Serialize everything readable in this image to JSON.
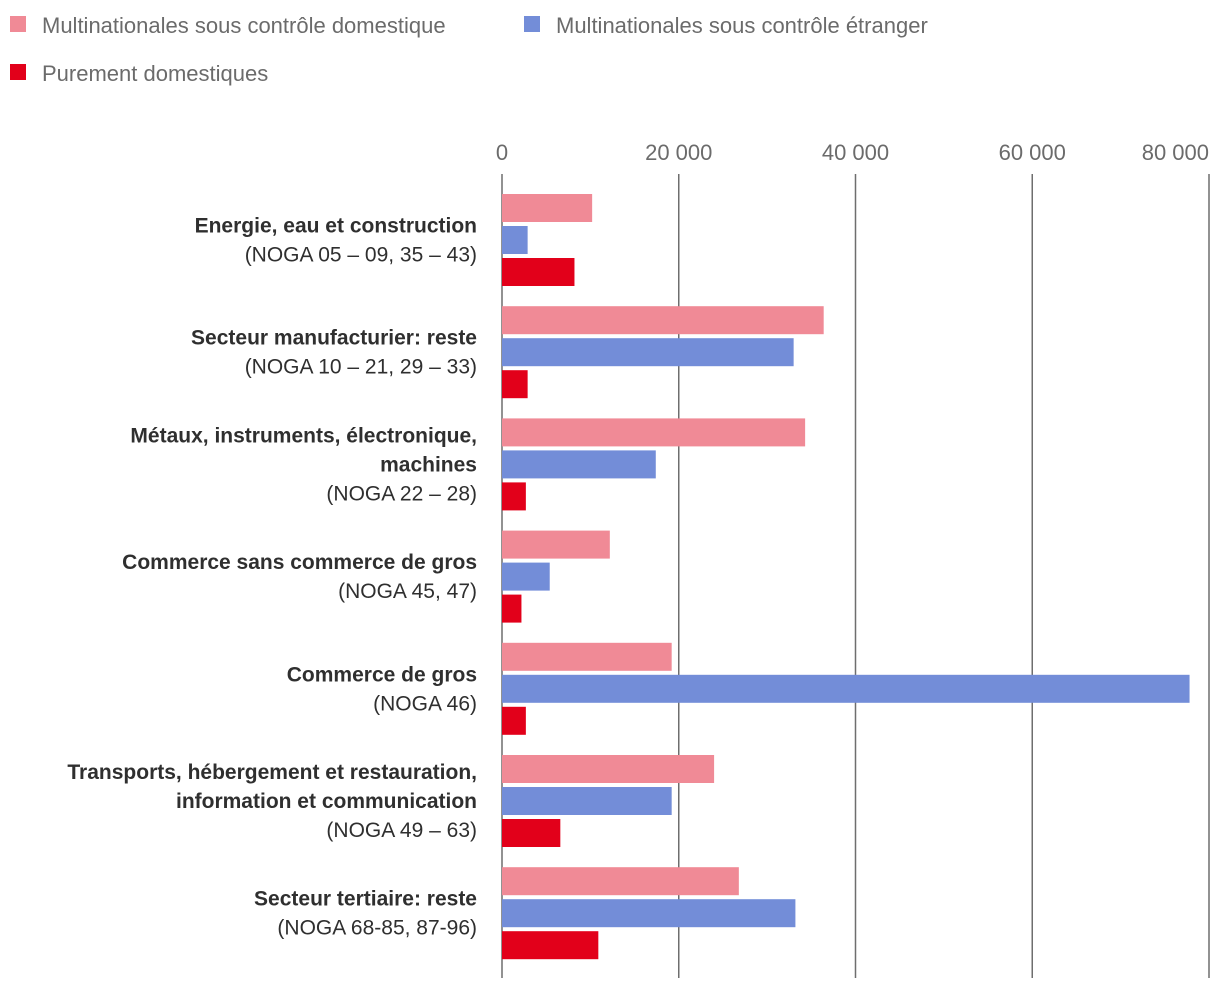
{
  "chart_data": {
    "type": "bar",
    "orientation": "horizontal",
    "title": "",
    "xlabel": "",
    "ylabel": "",
    "xlim": [
      0,
      80000
    ],
    "ticks": [
      "0",
      "20 000",
      "40 000",
      "60 000",
      "80 000"
    ],
    "tick_values": [
      0,
      20000,
      40000,
      60000,
      80000
    ],
    "grid": true,
    "legend_position": "top-left",
    "categories": [
      {
        "lines": [
          "Energie, eau et construction"
        ],
        "code": "(NOGA 05 – 09, 35 – 43)"
      },
      {
        "lines": [
          "Secteur manufacturier: reste"
        ],
        "code": "(NOGA 10 – 21, 29 – 33)"
      },
      {
        "lines": [
          "Métaux, instruments, électronique,",
          "machines"
        ],
        "code": "(NOGA 22 – 28)"
      },
      {
        "lines": [
          "Commerce sans commerce de gros"
        ],
        "code": "(NOGA 45, 47)"
      },
      {
        "lines": [
          "Commerce de gros"
        ],
        "code": "(NOGA 46)"
      },
      {
        "lines": [
          "Transports, hébergement et restauration,",
          "information et communication"
        ],
        "code": "(NOGA 49 – 63)"
      },
      {
        "lines": [
          "Secteur tertiaire: reste"
        ],
        "code": "(NOGA 68-85, 87-96)"
      }
    ],
    "series": [
      {
        "name": "Multinationales sous contrôle domestique",
        "color": "#f08a96",
        "values": [
          10200,
          36400,
          34300,
          12200,
          19200,
          24000,
          26800
        ]
      },
      {
        "name": "Multinationales sous contrôle étranger",
        "color": "#738dd8",
        "values": [
          2900,
          33000,
          17400,
          5400,
          77800,
          19200,
          33200
        ]
      },
      {
        "name": "Purement domestiques",
        "color": "#e2001a",
        "values": [
          8200,
          2900,
          2700,
          2200,
          2700,
          6600,
          10900
        ]
      }
    ]
  }
}
